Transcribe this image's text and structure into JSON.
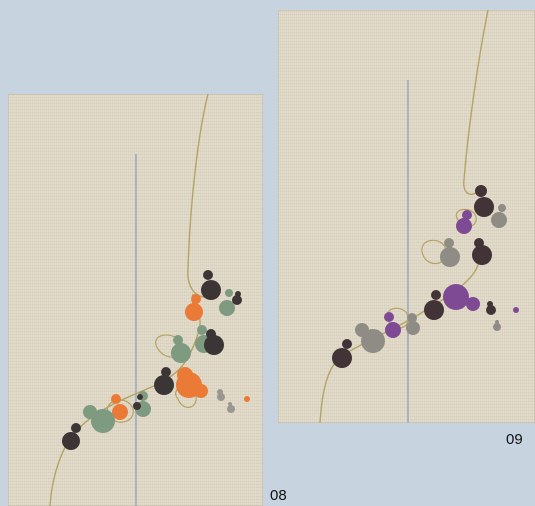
{
  "products": [
    {
      "number": "08",
      "colors": {
        "dark": "#3b3535",
        "accent": "#ea7a35",
        "green": "#7e9a80",
        "grey": "#9a9790"
      }
    },
    {
      "number": "09",
      "colors": {
        "dark": "#423337",
        "accent": "#7f4a94",
        "grey": "#8f8c86"
      }
    }
  ]
}
